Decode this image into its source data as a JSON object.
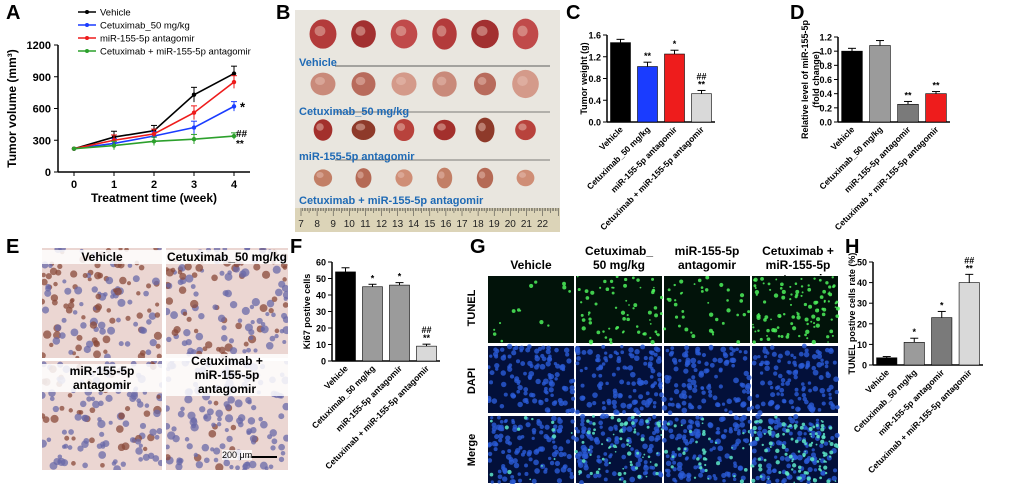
{
  "panels": {
    "A": "A",
    "B": "B",
    "C": "C",
    "D": "D",
    "E": "E",
    "F": "F",
    "G": "G",
    "H": "H"
  },
  "groups": [
    "Vehicle",
    "Cetuximab_50 mg/kg",
    "miR-155-5p antagomir",
    "Cetuximab + miR-155-5p antagomir"
  ],
  "colors": {
    "vehicle": "#000000",
    "cetuximab": "#1a3cff",
    "antagomir": "#ee1c1c",
    "combo": "#2ca02c",
    "gray_light": "#d9d9d9",
    "gray_mid": "#9b9b9b",
    "gray_dark": "#7a7a7a",
    "photo_label": "#1f6ab5"
  },
  "chart_data": [
    {
      "id": "A",
      "type": "line",
      "x": [
        0,
        1,
        2,
        3,
        4
      ],
      "xlabel": "Treatment time (week)",
      "ylabel": "Tumor volume (mm³)",
      "ylim": [
        0,
        1200
      ],
      "yticks": [
        0,
        300,
        600,
        900,
        1200
      ],
      "series": [
        {
          "name": "Vehicle",
          "values": [
            220,
            330,
            390,
            730,
            930
          ]
        },
        {
          "name": "Cetuximab_50 mg/kg",
          "values": [
            220,
            270,
            340,
            420,
            620
          ]
        },
        {
          "name": "miR-155-5p antagomir",
          "values": [
            220,
            300,
            360,
            560,
            850
          ]
        },
        {
          "name": "Cetuximab + miR-155-5p antagomir",
          "values": [
            220,
            250,
            290,
            310,
            340
          ]
        }
      ],
      "annotations": [
        "*",
        "##",
        "**"
      ]
    },
    {
      "id": "C",
      "type": "bar",
      "categories": [
        "Vehicle",
        "Cetuximab_50 mg/kg",
        "miR-155-5p antagomir",
        "Cetuximab + miR-155-5p antagomir"
      ],
      "values": [
        1.46,
        1.02,
        1.25,
        0.52
      ],
      "ylabel": "Tumor weight (g)",
      "ylim": [
        0,
        1.6
      ],
      "yticks": [
        "0.0",
        "0.4",
        "0.8",
        "1.2",
        "1.6"
      ],
      "sig": [
        "",
        "**",
        "*",
        "##\n**"
      ]
    },
    {
      "id": "D",
      "type": "bar",
      "categories": [
        "Vehicle",
        "Cetuximab_50 mg/kg",
        "miR-155-5p antagomir",
        "Cetuximab + miR-155-5p antagomir"
      ],
      "values": [
        1.0,
        1.08,
        0.25,
        0.4
      ],
      "ylabel": "Relative level of miR-155-5p\n(fold change)",
      "ylim": [
        0,
        1.2
      ],
      "yticks": [
        "0.0",
        "0.2",
        "0.4",
        "0.6",
        "0.8",
        "1.0",
        "1.2"
      ],
      "sig": [
        "",
        "",
        "**",
        "**"
      ]
    },
    {
      "id": "F",
      "type": "bar",
      "categories": [
        "Vehicle",
        "Cetuximab_50 mg/kg",
        "miR-155-5p antagomir",
        "Cetuximab + miR-155-5p antagomir"
      ],
      "values": [
        54,
        45,
        46,
        9
      ],
      "ylabel": "Ki67 postive cells",
      "ylim": [
        0,
        60
      ],
      "yticks": [
        "0",
        "10",
        "20",
        "30",
        "40",
        "50",
        "60"
      ],
      "sig": [
        "",
        "*",
        "*",
        "##\n**"
      ]
    },
    {
      "id": "H",
      "type": "bar",
      "categories": [
        "Vehicle",
        "Cetuximab_50 mg/kg",
        "miR-155-5p antagomir",
        "Cetuximab + miR-155-5p antagomir"
      ],
      "values": [
        3.5,
        11,
        23,
        40
      ],
      "ylabel": "TUNEL postive cells rate (%)",
      "ylim": [
        0,
        50
      ],
      "yticks": [
        "0",
        "10",
        "20",
        "30",
        "40",
        "50"
      ],
      "sig": [
        "",
        "*",
        "*",
        "##\n**"
      ]
    }
  ],
  "B": {
    "labels": [
      "Vehicle",
      "Cetuximab_50 mg/kg",
      "miR-155-5p antagomir",
      "Cetuximab + miR-155-5p antagomir"
    ],
    "ruler": [
      "7",
      "8",
      "9",
      "10",
      "11",
      "12",
      "13",
      "14",
      "15",
      "16",
      "17",
      "18",
      "19",
      "20",
      "21",
      "22"
    ]
  },
  "E": {
    "labels": [
      "Vehicle",
      "Cetuximab_50 mg/kg",
      "miR-155-5p antagomir",
      "Cetuximab +\nmiR-155-5p antagomir"
    ],
    "scale_bar": "200 μm"
  },
  "G": {
    "cols": [
      "Vehicle",
      "Cetuximab_\n50 mg/kg",
      "miR-155-5p\nantagomir",
      "Cetuximab +\nmiR-155-5p antagomir"
    ],
    "rows": [
      "TUNEL",
      "DAPI",
      "Merge"
    ]
  }
}
